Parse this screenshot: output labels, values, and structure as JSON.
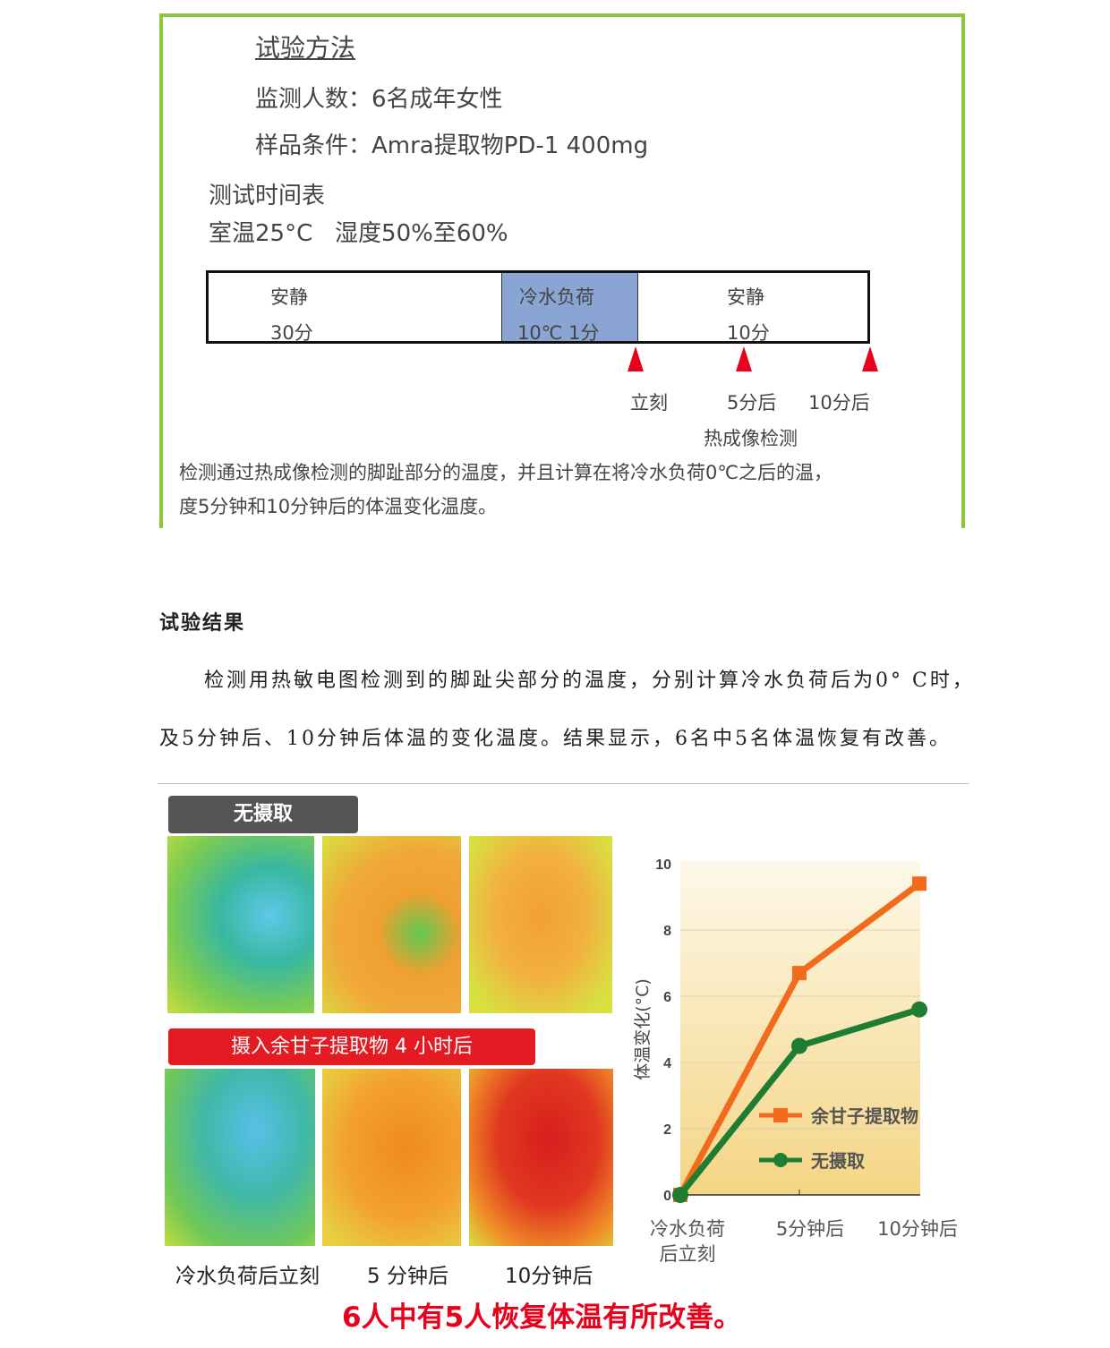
{
  "method": {
    "title": "试验方法",
    "subjects": "监测人数：6名成年女性",
    "sample": "样品条件：Amra提取物PD-1 400mg",
    "schedule_title": "测试时间表",
    "conditions": "室温25°C   湿度50%至60%",
    "timeline": [
      {
        "name": "安静",
        "duration": "30分"
      },
      {
        "name": "冷水负荷",
        "duration": "10℃  1分"
      },
      {
        "name": "安静",
        "duration": "10分"
      }
    ],
    "markers": [
      "立刻",
      "5分后",
      "10分后"
    ],
    "marker_caption": "热成像检测",
    "desc1": "检测通过热成像检测的脚趾部分的温度，并且计算在将冷水负荷0℃之后的温，",
    "desc2": "度5分钟和10分钟后的体温变化温度。"
  },
  "results": {
    "title": "试验结果",
    "p1": "检测用热敏电图检测到的脚趾尖部分的温度，分别计算冷水负荷后为0° C时，",
    "p2": "及5分钟后、10分钟后体温的变化温度。结果显示，6名中5名体温恢复有改善。"
  },
  "figure": {
    "tag_none": "无摄取",
    "tag_intake": "摄入余甘子提取物 4 小时后",
    "captions": [
      "冷水负荷后立刻",
      "5 分钟后",
      "10分钟后"
    ],
    "conclusion": "6人中有5人恢复体温有所改善。"
  },
  "chart_data": {
    "type": "line",
    "categories": [
      "冷水负荷\n后立刻",
      "5分钟后",
      "10分钟后"
    ],
    "ylabel": "体温变化(°C)",
    "ylim": [
      0,
      10
    ],
    "yticks": [
      0,
      2,
      4,
      6,
      8,
      10
    ],
    "grid": true,
    "legend": "center-right",
    "series": [
      {
        "name": "余甘子提取物",
        "values": [
          0,
          6.7,
          9.4
        ],
        "color": "#f26a1b",
        "marker": "square"
      },
      {
        "name": "无摄取",
        "values": [
          0,
          4.5,
          5.6
        ],
        "color": "#1e7d32",
        "marker": "circle"
      }
    ]
  },
  "colors": {
    "border": "#8cc63f",
    "accent_red": "#e8001c",
    "tag_gray": "#555555"
  }
}
